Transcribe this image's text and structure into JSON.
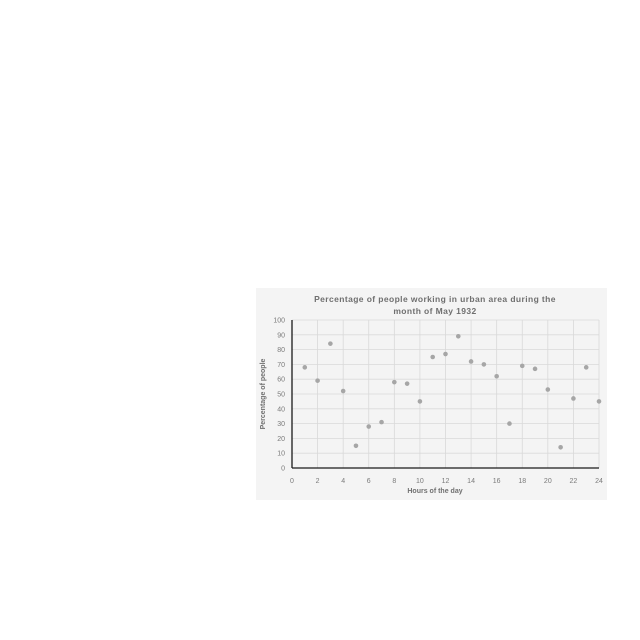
{
  "chart_data": {
    "type": "scatter",
    "title_lines": [
      "Percentage of people working in urban area during the",
      "month of May 1932"
    ],
    "xlabel": "Hours of the day",
    "ylabel": "Percentage of people",
    "xlim": [
      0,
      24
    ],
    "ylim": [
      0,
      100
    ],
    "x_ticks": [
      0,
      2,
      4,
      6,
      8,
      10,
      12,
      14,
      16,
      18,
      20,
      22,
      24
    ],
    "y_ticks": [
      0,
      10,
      20,
      30,
      40,
      50,
      60,
      70,
      80,
      90,
      100
    ],
    "grid": true,
    "legend": "none",
    "marker_color": "#a6a6a6",
    "points": [
      {
        "x": 1,
        "y": 68
      },
      {
        "x": 2,
        "y": 59
      },
      {
        "x": 3,
        "y": 84
      },
      {
        "x": 4,
        "y": 52
      },
      {
        "x": 5,
        "y": 15
      },
      {
        "x": 6,
        "y": 28
      },
      {
        "x": 7,
        "y": 31
      },
      {
        "x": 8,
        "y": 58
      },
      {
        "x": 9,
        "y": 57
      },
      {
        "x": 10,
        "y": 45
      },
      {
        "x": 11,
        "y": 75
      },
      {
        "x": 12,
        "y": 77
      },
      {
        "x": 13,
        "y": 89
      },
      {
        "x": 14,
        "y": 72
      },
      {
        "x": 15,
        "y": 70
      },
      {
        "x": 16,
        "y": 62
      },
      {
        "x": 17,
        "y": 30
      },
      {
        "x": 18,
        "y": 69
      },
      {
        "x": 19,
        "y": 67
      },
      {
        "x": 20,
        "y": 53
      },
      {
        "x": 21,
        "y": 14
      },
      {
        "x": 22,
        "y": 47
      },
      {
        "x": 23,
        "y": 68
      },
      {
        "x": 24,
        "y": 45
      }
    ]
  }
}
